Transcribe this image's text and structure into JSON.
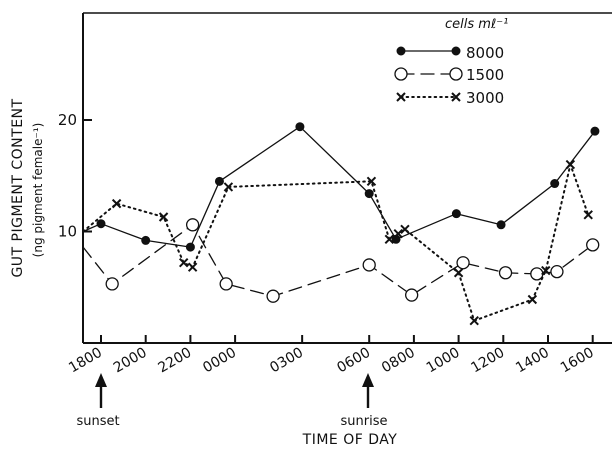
{
  "chart_data": {
    "type": "line",
    "xlabel": "TIME OF DAY",
    "ylabel": "GUT PIGMENT CONTENT",
    "ylabel_units": "(ng pigment female⁻¹)",
    "y_ticks": [
      10,
      20
    ],
    "y_tick_labels": [
      "10",
      "20"
    ],
    "ylim": [
      0,
      30
    ],
    "x_ticks": [
      0,
      2,
      4,
      6,
      9,
      12,
      14,
      16,
      18,
      20,
      22
    ],
    "x_tick_labels": [
      "1800",
      "2000",
      "2200",
      "0000",
      "0300",
      "0600",
      "0800",
      "1000",
      "1200",
      "1400",
      "1600"
    ],
    "xlim": [
      -0.8,
      22.8
    ],
    "x_units": "hours after 1800",
    "legend": {
      "title": "cells mℓ⁻¹",
      "position": "top-right"
    },
    "annotations": [
      {
        "text": "sunset",
        "x": 0
      },
      {
        "text": "sunrise",
        "x": 12
      }
    ],
    "series": [
      {
        "name": "8000",
        "marker": "filled-circle",
        "line": "solid",
        "color": "#111111",
        "points": [
          [
            -0.8,
            10
          ],
          [
            0,
            10.7
          ],
          [
            2,
            9.2
          ],
          [
            4,
            8.6
          ],
          [
            5.3,
            14.5
          ],
          [
            8.9,
            19.4
          ],
          [
            12,
            13.4
          ],
          [
            13.2,
            9.3
          ],
          [
            15.9,
            11.6
          ],
          [
            17.9,
            10.6
          ],
          [
            20.3,
            14.3
          ],
          [
            22.1,
            19.0
          ]
        ]
      },
      {
        "name": "1500",
        "marker": "open-circle",
        "line": "dashed",
        "color": "#111111",
        "points": [
          [
            -0.8,
            8.6
          ],
          [
            0.5,
            5.3
          ],
          [
            4.1,
            10.6
          ],
          [
            5.6,
            5.3
          ],
          [
            7.7,
            4.2
          ],
          [
            12,
            7.0
          ],
          [
            13.9,
            4.3
          ],
          [
            16.2,
            7.2
          ],
          [
            18.1,
            6.3
          ],
          [
            19.5,
            6.2
          ],
          [
            20.4,
            6.4
          ],
          [
            22,
            8.8
          ]
        ]
      },
      {
        "name": "3000",
        "marker": "x",
        "line": "dotted",
        "color": "#111111",
        "points": [
          [
            -0.8,
            10
          ],
          [
            0.7,
            12.5
          ],
          [
            2.8,
            11.3
          ],
          [
            3.7,
            7.2
          ],
          [
            4.1,
            6.8
          ],
          [
            5.7,
            14.0
          ],
          [
            12.1,
            14.5
          ],
          [
            12.9,
            9.3
          ],
          [
            13.3,
            9.8
          ],
          [
            13.6,
            10.2
          ],
          [
            16,
            6.3
          ],
          [
            16.7,
            2.0
          ],
          [
            19.3,
            3.9
          ],
          [
            19.9,
            6.5
          ],
          [
            21,
            16.0
          ],
          [
            21.8,
            11.5
          ]
        ]
      }
    ]
  }
}
